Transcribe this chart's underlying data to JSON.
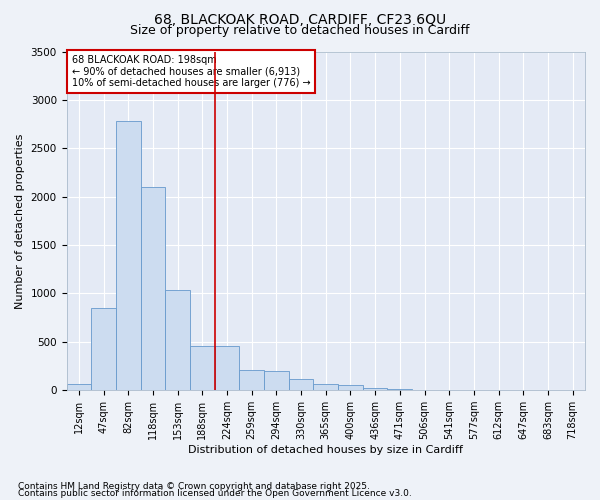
{
  "title1": "68, BLACKOAK ROAD, CARDIFF, CF23 6QU",
  "title2": "Size of property relative to detached houses in Cardiff",
  "xlabel": "Distribution of detached houses by size in Cardiff",
  "ylabel": "Number of detached properties",
  "categories": [
    "12sqm",
    "47sqm",
    "82sqm",
    "118sqm",
    "153sqm",
    "188sqm",
    "224sqm",
    "259sqm",
    "294sqm",
    "330sqm",
    "365sqm",
    "400sqm",
    "436sqm",
    "471sqm",
    "506sqm",
    "541sqm",
    "577sqm",
    "612sqm",
    "647sqm",
    "683sqm",
    "718sqm"
  ],
  "values": [
    60,
    850,
    2780,
    2100,
    1040,
    460,
    460,
    210,
    200,
    120,
    60,
    50,
    20,
    12,
    5,
    3,
    2,
    2,
    1,
    1,
    1
  ],
  "bar_color": "#ccdcf0",
  "bar_edge_color": "#6699cc",
  "vline_x": 5.5,
  "vline_color": "#cc0000",
  "annotation_text": "68 BLACKOAK ROAD: 198sqm\n← 90% of detached houses are smaller (6,913)\n10% of semi-detached houses are larger (776) →",
  "annotation_box_color": "#cc0000",
  "ylim": [
    0,
    3500
  ],
  "yticks": [
    0,
    500,
    1000,
    1500,
    2000,
    2500,
    3000,
    3500
  ],
  "footer1": "Contains HM Land Registry data © Crown copyright and database right 2025.",
  "footer2": "Contains public sector information licensed under the Open Government Licence v3.0.",
  "bg_color": "#eef2f8",
  "plot_bg_color": "#e4eaf5",
  "grid_color": "#ffffff",
  "title_fontsize": 10,
  "subtitle_fontsize": 9,
  "axis_label_fontsize": 8,
  "tick_fontsize": 7,
  "annot_fontsize": 7,
  "footer_fontsize": 6.5
}
